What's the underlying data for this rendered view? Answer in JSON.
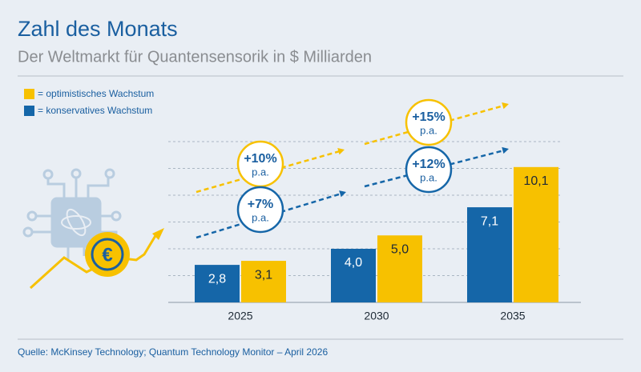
{
  "chart_data": {
    "type": "bar",
    "title": "Zahl des Monats",
    "subtitle": "Der Weltmarkt für Quantensensorik in $ Milliarden",
    "categories": [
      "2025",
      "2030",
      "2035"
    ],
    "series": [
      {
        "name": "= optimistisches Wachstum",
        "color": "#f7c100",
        "values": [
          3.1,
          5.0,
          10.1
        ],
        "value_labels": [
          "3,1",
          "5,0",
          "10,1"
        ]
      },
      {
        "name": "= konservatives Wachstum",
        "color": "#1566a8",
        "values": [
          2.8,
          4.0,
          7.1
        ],
        "value_labels": [
          "2,8",
          "4,0",
          "7,1"
        ]
      }
    ],
    "ylim": [
      0,
      12
    ],
    "yticks": [
      2,
      4,
      6,
      8,
      10,
      12
    ],
    "grid": true,
    "annotations": [
      {
        "text": "+10%",
        "sub": "p.a.",
        "color": "#f7c100"
      },
      {
        "text": "+7%",
        "sub": "p.a.",
        "color": "#1566a8"
      },
      {
        "text": "+15%",
        "sub": "p.a.",
        "color": "#f7c100"
      },
      {
        "text": "+12%",
        "sub": "p.a.",
        "color": "#1566a8"
      }
    ],
    "icon_text": "€",
    "source": "Quelle: McKinsey Technology; Quantum Technology Monitor – April 2026"
  }
}
